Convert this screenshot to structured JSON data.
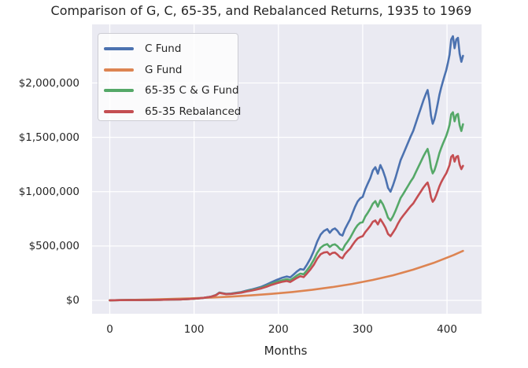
{
  "figure": {
    "title": "Comparison of G, C, 65-35, and Rebalanced Returns, 1935 to 1969"
  },
  "chart_data": {
    "type": "line",
    "title": "Comparison of G, C, 65-35, and Rebalanced Returns, 1935 to 1969",
    "xlabel": "Months",
    "ylabel": "",
    "unit": "USD",
    "grid": true,
    "legend_position": "upper left",
    "plot_bg_color": "#eaeaf2",
    "grid_color": "#ffffff",
    "text_color": "#262626",
    "xlim": [
      -21,
      441
    ],
    "ylim": [
      -123000,
      2539000
    ],
    "x_ticks": [
      {
        "value": 0,
        "label": "0"
      },
      {
        "value": 100,
        "label": "100"
      },
      {
        "value": 200,
        "label": "200"
      },
      {
        "value": 300,
        "label": "300"
      },
      {
        "value": 400,
        "label": "400"
      }
    ],
    "y_ticks": [
      {
        "value": 0,
        "label": "$0"
      },
      {
        "value": 500000,
        "label": "$500,000"
      },
      {
        "value": 1000000,
        "label": "$1,000,000"
      },
      {
        "value": 1500000,
        "label": "$1,500,000"
      },
      {
        "value": 2000000,
        "label": "$2,000,000"
      }
    ],
    "series": [
      {
        "name": "C Fund",
        "color": "#4c72b0",
        "x": [
          0,
          12,
          24,
          36,
          48,
          60,
          72,
          84,
          96,
          104,
          112,
          120,
          126,
          130,
          134,
          138,
          144,
          150,
          156,
          162,
          168,
          174,
          180,
          186,
          192,
          198,
          204,
          210,
          214,
          218,
          222,
          226,
          230,
          234,
          238,
          242,
          246,
          250,
          254,
          258,
          261,
          264,
          267,
          270,
          273,
          276,
          279,
          282,
          285,
          288,
          291,
          294,
          297,
          300,
          303,
          306,
          309,
          312,
          315,
          318,
          321,
          324,
          327,
          330,
          333,
          336,
          339,
          342,
          345,
          348,
          351,
          354,
          357,
          360,
          363,
          366,
          369,
          372,
          375,
          377,
          379,
          381,
          383,
          385,
          387,
          389,
          391,
          393,
          395,
          397,
          399,
          401,
          403,
          405,
          407,
          409,
          411,
          413,
          415,
          417,
          419
        ],
        "values": [
          1000,
          2000,
          3000,
          3000,
          4000,
          5000,
          7000,
          9000,
          13000,
          17000,
          24000,
          34000,
          50000,
          72000,
          66000,
          60000,
          63000,
          70000,
          77000,
          90000,
          100000,
          112000,
          126000,
          146000,
          168000,
          188000,
          207000,
          220000,
          211000,
          238000,
          266000,
          288000,
          282000,
          330000,
          385000,
          455000,
          540000,
          605000,
          638000,
          655000,
          622000,
          650000,
          662000,
          640000,
          607000,
          596000,
          655000,
          700000,
          745000,
          805000,
          862000,
          910000,
          938000,
          952000,
          1020000,
          1075000,
          1125000,
          1195000,
          1225000,
          1165000,
          1245000,
          1195000,
          1125000,
          1035000,
          1000000,
          1060000,
          1130000,
          1210000,
          1290000,
          1345000,
          1400000,
          1455000,
          1510000,
          1560000,
          1630000,
          1700000,
          1770000,
          1840000,
          1900000,
          1935000,
          1840000,
          1700000,
          1625000,
          1665000,
          1730000,
          1810000,
          1890000,
          1955000,
          2010000,
          2065000,
          2115000,
          2180000,
          2260000,
          2400000,
          2430000,
          2320000,
          2400000,
          2415000,
          2270000,
          2195000,
          2250000
        ]
      },
      {
        "name": "G Fund",
        "color": "#dd8452",
        "x": [
          0,
          24,
          48,
          72,
          96,
          120,
          144,
          168,
          192,
          216,
          240,
          264,
          288,
          312,
          336,
          360,
          384,
          408,
          419
        ],
        "values": [
          1000,
          4000,
          8000,
          13000,
          19000,
          26000,
          35000,
          46000,
          60000,
          77000,
          97000,
          122000,
          152000,
          188000,
          231000,
          283000,
          344000,
          417000,
          455000
        ]
      },
      {
        "name": "65-35 C & G Fund",
        "color": "#55a868",
        "x": [
          0,
          12,
          24,
          36,
          48,
          60,
          72,
          84,
          96,
          104,
          112,
          120,
          126,
          130,
          134,
          138,
          144,
          150,
          156,
          162,
          168,
          174,
          180,
          186,
          192,
          198,
          204,
          210,
          214,
          218,
          222,
          226,
          230,
          234,
          238,
          242,
          246,
          250,
          254,
          258,
          261,
          264,
          267,
          270,
          273,
          276,
          279,
          282,
          285,
          288,
          291,
          294,
          297,
          300,
          303,
          306,
          309,
          312,
          315,
          318,
          321,
          324,
          327,
          330,
          333,
          336,
          339,
          342,
          345,
          348,
          351,
          354,
          357,
          360,
          363,
          366,
          369,
          372,
          375,
          377,
          379,
          381,
          383,
          385,
          387,
          389,
          391,
          393,
          395,
          397,
          399,
          401,
          403,
          405,
          407,
          409,
          411,
          413,
          415,
          417,
          419
        ],
        "values": [
          1000,
          2000,
          3000,
          3000,
          4000,
          5000,
          7000,
          9000,
          13000,
          17000,
          24000,
          33000,
          49000,
          70000,
          64000,
          58000,
          60000,
          67000,
          73000,
          85000,
          94000,
          105000,
          117000,
          134000,
          153000,
          169000,
          184000,
          195000,
          186000,
          207000,
          229000,
          246000,
          240000,
          277000,
          320000,
          373000,
          437000,
          484000,
          507000,
          517000,
          491000,
          510000,
          516000,
          499000,
          473000,
          462000,
          508000,
          539000,
          574000,
          616000,
          659000,
          692000,
          713000,
          719000,
          770000,
          806000,
          844000,
          890000,
          913000,
          862000,
          921000,
          884000,
          827000,
          761000,
          735000,
          774000,
          825000,
          883000,
          942000,
          979000,
          1018000,
          1056000,
          1095000,
          1129000,
          1178000,
          1227000,
          1276000,
          1325000,
          1368000,
          1393000,
          1325000,
          1222000,
          1168000,
          1195000,
          1242000,
          1298000,
          1355000,
          1400000,
          1439000,
          1476000,
          1512000,
          1557000,
          1614000,
          1711000,
          1730000,
          1647000,
          1704000,
          1715000,
          1612000,
          1558000,
          1620000
        ]
      },
      {
        "name": "65-35 Rebalanced",
        "color": "#c44e52",
        "x": [
          0,
          12,
          24,
          36,
          48,
          60,
          72,
          84,
          96,
          104,
          112,
          120,
          126,
          130,
          134,
          138,
          144,
          150,
          156,
          162,
          168,
          174,
          180,
          186,
          192,
          198,
          204,
          210,
          214,
          218,
          222,
          226,
          230,
          234,
          238,
          242,
          246,
          250,
          254,
          258,
          261,
          264,
          267,
          270,
          273,
          276,
          279,
          282,
          285,
          288,
          291,
          294,
          297,
          300,
          303,
          306,
          309,
          312,
          315,
          318,
          321,
          324,
          327,
          330,
          333,
          336,
          339,
          342,
          345,
          348,
          351,
          354,
          357,
          360,
          363,
          366,
          369,
          372,
          375,
          377,
          379,
          381,
          383,
          385,
          387,
          389,
          391,
          393,
          395,
          397,
          399,
          401,
          403,
          405,
          407,
          409,
          411,
          413,
          415,
          417,
          419
        ],
        "values": [
          1000,
          2000,
          3000,
          3000,
          4000,
          5000,
          7000,
          9000,
          13000,
          17000,
          24000,
          33000,
          48000,
          69000,
          63000,
          57000,
          59000,
          65000,
          71000,
          82000,
          90000,
          100000,
          111000,
          126000,
          143000,
          158000,
          170000,
          178000,
          169000,
          188000,
          207000,
          222000,
          214000,
          248000,
          285000,
          328000,
          383000,
          424000,
          440000,
          445000,
          420000,
          436000,
          440000,
          422000,
          398000,
          387000,
          426000,
          452000,
          477000,
          511000,
          543000,
          569000,
          582000,
          590000,
          627000,
          656000,
          686000,
          723000,
          735000,
          699000,
          747000,
          711000,
          669000,
          611000,
          590000,
          625000,
          661000,
          708000,
          748000,
          780000,
          809000,
          838000,
          867000,
          892000,
          929000,
          966000,
          1002000,
          1038000,
          1068000,
          1084000,
          1030000,
          949000,
          907000,
          927000,
          962000,
          1006000,
          1049000,
          1085000,
          1114000,
          1142000,
          1167000,
          1203000,
          1245000,
          1320000,
          1337000,
          1276000,
          1320000,
          1328000,
          1249000,
          1207000,
          1238000
        ]
      }
    ]
  }
}
